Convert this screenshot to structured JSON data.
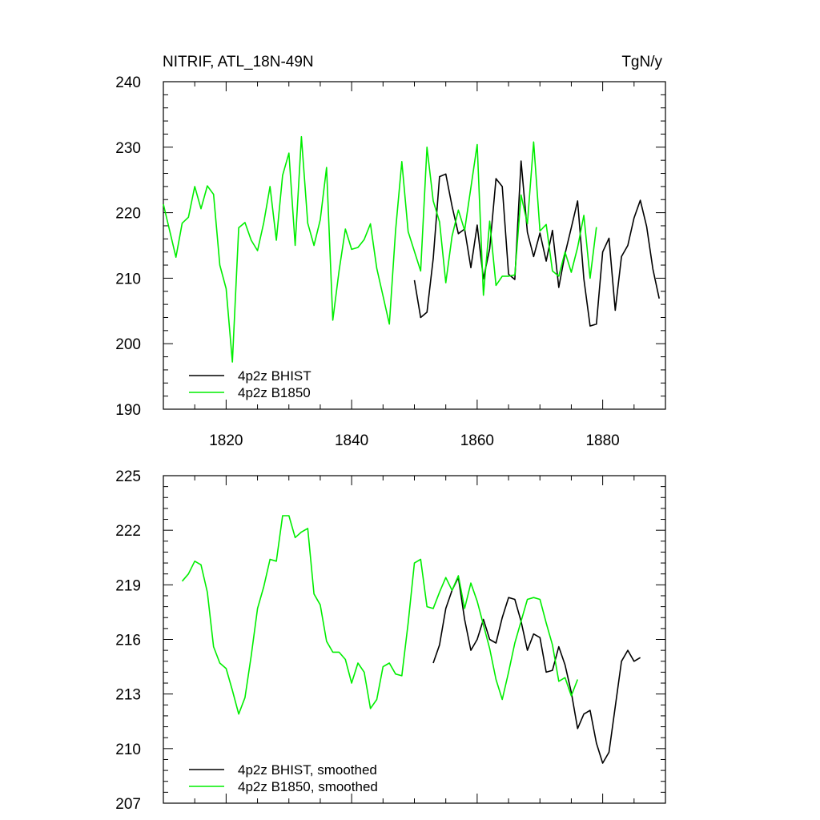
{
  "chart_data": [
    {
      "type": "line",
      "title": "NITRIF, ATL_18N-49N",
      "units": "TgN/y",
      "xlim": [
        1810,
        1890
      ],
      "ylim": [
        190,
        240
      ],
      "xticks": [
        1820,
        1840,
        1860,
        1880
      ],
      "yticks": [
        190,
        200,
        210,
        220,
        230,
        240
      ],
      "ytick_labels": [
        "190",
        "200",
        "210",
        "220",
        "230",
        "240"
      ],
      "legend_position": "bottom-left",
      "series": [
        {
          "name": "4p2z BHIST",
          "color": "#000000",
          "x": [
            1850,
            1851,
            1852,
            1853,
            1854,
            1855,
            1856,
            1857,
            1858,
            1859,
            1860,
            1861,
            1862,
            1863,
            1864,
            1865,
            1866,
            1867,
            1868,
            1869,
            1870,
            1871,
            1872,
            1873,
            1874,
            1875,
            1876,
            1877,
            1878,
            1879,
            1880,
            1881,
            1882,
            1883,
            1884,
            1885,
            1886,
            1887,
            1888,
            1889
          ],
          "y": [
            209.7,
            204.0,
            204.8,
            213.0,
            225.5,
            225.9,
            221.0,
            216.8,
            217.5,
            211.6,
            218.1,
            209.9,
            214.5,
            225.2,
            224.0,
            210.6,
            209.8,
            227.9,
            217.0,
            213.3,
            216.9,
            212.6,
            217.3,
            208.6,
            213.7,
            217.7,
            221.8,
            209.9,
            202.7,
            203.0,
            214.0,
            216.1,
            205.1,
            213.3,
            215.0,
            219.2,
            221.9,
            217.9,
            211.4,
            206.9
          ]
        },
        {
          "name": "4p2z B1850",
          "color": "#00ee00",
          "x": [
            1810,
            1811,
            1812,
            1813,
            1814,
            1815,
            1816,
            1817,
            1818,
            1819,
            1820,
            1821,
            1822,
            1823,
            1824,
            1825,
            1826,
            1827,
            1828,
            1829,
            1830,
            1831,
            1832,
            1833,
            1834,
            1835,
            1836,
            1837,
            1838,
            1839,
            1840,
            1841,
            1842,
            1843,
            1844,
            1845,
            1846,
            1847,
            1848,
            1849,
            1850,
            1851,
            1852,
            1853,
            1854,
            1855,
            1856,
            1857,
            1858,
            1859,
            1860,
            1861,
            1862,
            1863,
            1864,
            1865,
            1866,
            1867,
            1868,
            1869,
            1870,
            1871,
            1872,
            1873,
            1874,
            1875,
            1876,
            1877,
            1878,
            1879
          ],
          "y": [
            221.3,
            217.3,
            213.2,
            218.4,
            219.3,
            224.0,
            220.6,
            224.1,
            222.8,
            212.0,
            208.4,
            197.2,
            217.7,
            218.5,
            215.8,
            214.2,
            218.5,
            224.0,
            215.8,
            225.7,
            229.1,
            215.0,
            231.6,
            218.4,
            215.0,
            218.9,
            226.9,
            203.6,
            211.1,
            217.5,
            214.4,
            214.7,
            215.9,
            218.3,
            211.5,
            207.3,
            203.0,
            217.3,
            227.8,
            217.1,
            214.1,
            211.1,
            230.0,
            221.8,
            218.6,
            209.3,
            216.4,
            220.4,
            217.3,
            223.8,
            230.4,
            207.4,
            218.7,
            208.9,
            210.3,
            210.3,
            210.5,
            222.7,
            218.3,
            230.8,
            217.2,
            218.2,
            211.1,
            210.3,
            214.0,
            210.9,
            214.7,
            219.6,
            210.0,
            217.8
          ]
        }
      ]
    },
    {
      "type": "line",
      "xlim": [
        1810,
        1890
      ],
      "ylim": [
        207,
        225
      ],
      "xticks": [
        1820,
        1840,
        1860,
        1880
      ],
      "yticks": [
        207,
        210,
        213,
        216,
        219,
        222,
        225
      ],
      "ytick_labels": [
        "207",
        "210",
        "213",
        "216",
        "219",
        "222",
        "225"
      ],
      "legend_position": "bottom-left",
      "series": [
        {
          "name": "4p2z BHIST, smoothed",
          "color": "#000000",
          "x": [
            1853,
            1854,
            1855,
            1856,
            1857,
            1858,
            1859,
            1860,
            1861,
            1862,
            1863,
            1864,
            1865,
            1866,
            1867,
            1868,
            1869,
            1870,
            1871,
            1872,
            1873,
            1874,
            1875,
            1876,
            1877,
            1878,
            1879,
            1880,
            1881,
            1882,
            1883,
            1884,
            1885,
            1886
          ],
          "y": [
            214.7,
            215.7,
            217.7,
            218.7,
            219.4,
            217.1,
            215.4,
            216.0,
            217.1,
            216.0,
            215.8,
            217.2,
            218.3,
            218.2,
            217.0,
            215.4,
            216.3,
            216.1,
            214.2,
            214.3,
            215.6,
            214.6,
            213.1,
            211.1,
            211.9,
            212.1,
            210.3,
            209.2,
            209.8,
            212.3,
            214.8,
            215.4,
            214.8,
            215.0
          ]
        },
        {
          "name": "4p2z B1850, smoothed",
          "color": "#00ee00",
          "x": [
            1813,
            1814,
            1815,
            1816,
            1817,
            1818,
            1819,
            1820,
            1821,
            1822,
            1823,
            1824,
            1825,
            1826,
            1827,
            1828,
            1829,
            1830,
            1831,
            1832,
            1833,
            1834,
            1835,
            1836,
            1837,
            1838,
            1839,
            1840,
            1841,
            1842,
            1843,
            1844,
            1845,
            1846,
            1847,
            1848,
            1849,
            1850,
            1851,
            1852,
            1853,
            1854,
            1855,
            1856,
            1857,
            1858,
            1859,
            1860,
            1861,
            1862,
            1863,
            1864,
            1865,
            1866,
            1867,
            1868,
            1869,
            1870,
            1871,
            1872,
            1873,
            1874,
            1875,
            1876
          ],
          "y": [
            219.2,
            219.6,
            220.3,
            220.1,
            218.6,
            215.6,
            214.7,
            214.4,
            213.2,
            211.9,
            212.8,
            215.1,
            217.7,
            218.9,
            220.4,
            220.3,
            222.8,
            222.8,
            221.6,
            221.9,
            222.1,
            218.5,
            217.9,
            215.9,
            215.3,
            215.3,
            214.9,
            213.6,
            214.7,
            214.2,
            212.2,
            212.7,
            214.5,
            214.7,
            214.1,
            214.0,
            216.9,
            220.2,
            220.4,
            217.8,
            217.7,
            218.6,
            219.4,
            218.7,
            219.5,
            217.7,
            219.1,
            218.1,
            216.8,
            215.5,
            213.8,
            212.7,
            214.2,
            215.8,
            217.0,
            218.2,
            218.3,
            218.2,
            216.9,
            215.7,
            213.7,
            213.9,
            212.9,
            213.8
          ]
        }
      ]
    }
  ]
}
